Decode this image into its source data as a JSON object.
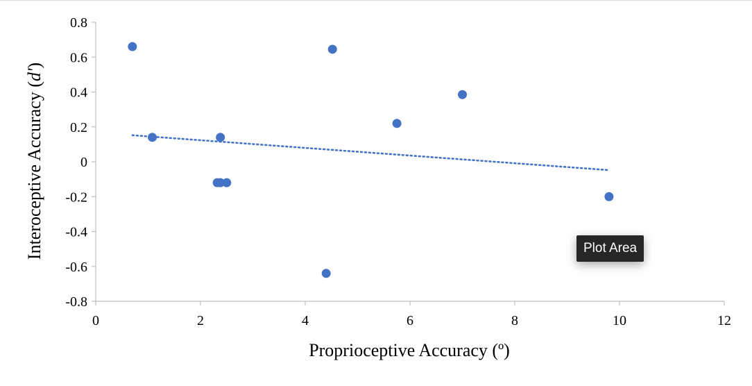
{
  "chart_data": {
    "type": "scatter",
    "xlabel": "Proprioceptive Accuracy (º)",
    "ylabel_prefix": "Interoceptive Accuracy (",
    "ylabel_italic": "d'",
    "ylabel_suffix": ")",
    "xlim": [
      0,
      12
    ],
    "ylim": [
      -0.8,
      0.8
    ],
    "x_ticks": [
      0,
      2,
      4,
      6,
      8,
      10,
      12
    ],
    "y_ticks": [
      -0.8,
      -0.6,
      -0.4,
      -0.2,
      0,
      0.2,
      0.4,
      0.6,
      0.8
    ],
    "x_tick_labels": [
      "0",
      "2",
      "4",
      "6",
      "8",
      "10",
      "12"
    ],
    "y_tick_labels": [
      "-0.8",
      "-0.6",
      "-0.4",
      "-0.2",
      "0",
      "0.2",
      "0.4",
      "0.6",
      "0.8"
    ],
    "grid": false,
    "marker_color": "#4472C4",
    "points": [
      {
        "x": 0.7,
        "y": 0.66
      },
      {
        "x": 1.08,
        "y": 0.14
      },
      {
        "x": 2.32,
        "y": -0.12
      },
      {
        "x": 2.38,
        "y": 0.14
      },
      {
        "x": 2.38,
        "y": -0.12
      },
      {
        "x": 2.5,
        "y": -0.12
      },
      {
        "x": 4.4,
        "y": -0.64
      },
      {
        "x": 4.52,
        "y": 0.645
      },
      {
        "x": 5.75,
        "y": 0.22
      },
      {
        "x": 7.0,
        "y": 0.385
      },
      {
        "x": 9.8,
        "y": -0.2
      }
    ],
    "trendline": {
      "style": "dotted",
      "color": "#4472C4",
      "x": [
        0.7,
        9.8
      ],
      "y": [
        0.152,
        -0.048
      ]
    }
  },
  "tooltip": {
    "label": "Plot Area"
  }
}
